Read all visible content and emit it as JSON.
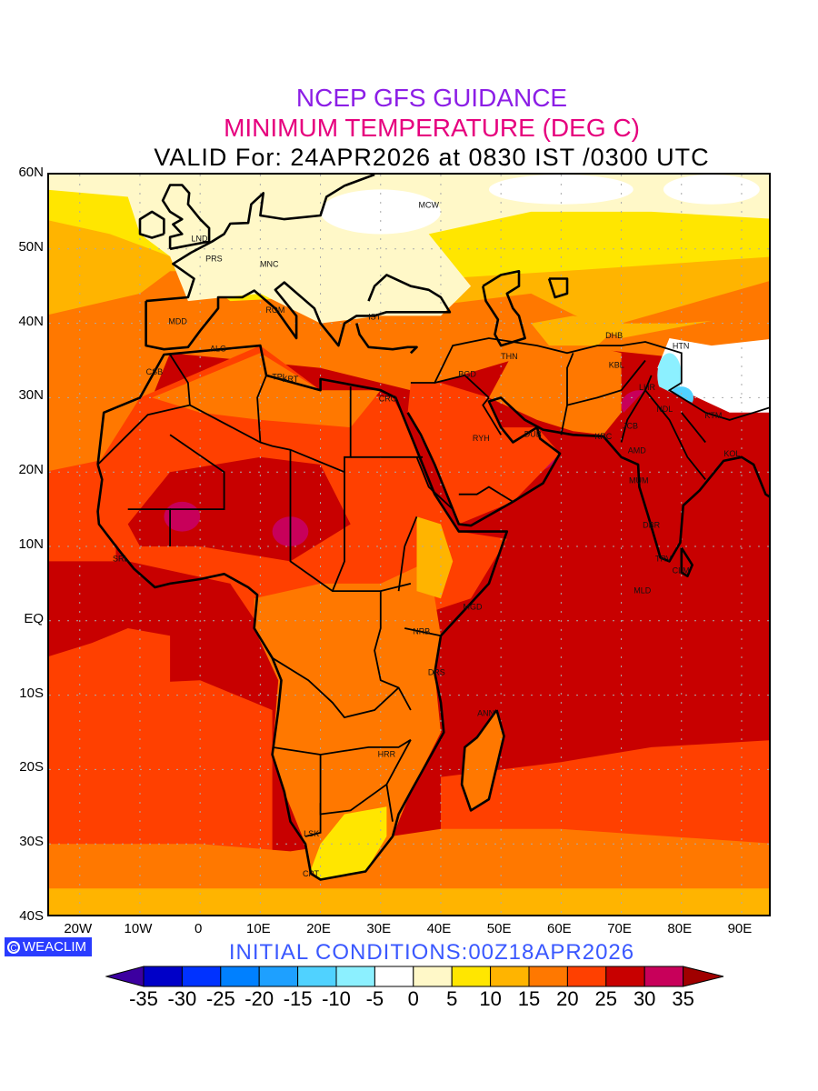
{
  "header": {
    "line1": "NCEP GFS GUIDANCE",
    "line2": "MINIMUM TEMPERATURE (DEG C)",
    "line3": "VALID For: 24APR2026 at 0830 IST /0300 UTC"
  },
  "axes": {
    "lat_labels": [
      "60N",
      "50N",
      "40N",
      "30N",
      "20N",
      "10N",
      "EQ",
      "10S",
      "20S",
      "30S",
      "40S"
    ],
    "lon_labels": [
      "20W",
      "10W",
      "0",
      "10E",
      "20E",
      "30E",
      "40E",
      "50E",
      "60E",
      "70E",
      "80E",
      "90E"
    ]
  },
  "cities": [
    "MCW",
    "LND",
    "PRS",
    "MNC",
    "ROM",
    "MDD",
    "IST",
    "ALG",
    "CSB",
    "TPL",
    "KRT",
    "CRO",
    "BGD",
    "THN",
    "DHB",
    "KBL",
    "HTN",
    "LHR",
    "JCB",
    "NDL",
    "KTM",
    "RYH",
    "DUB",
    "KRC",
    "AMD",
    "MUM",
    "KOL",
    "DBR",
    "TRV",
    "CLM",
    "MLD",
    "SRL",
    "MGD",
    "NRB",
    "DRS",
    "ANN",
    "HRR",
    "LSK",
    "CPT"
  ],
  "footer": {
    "badge": "WEACLIM",
    "initial": "INITIAL CONDITIONS:00Z18APR2026"
  },
  "colorbar": {
    "colors": [
      "#3c00a0",
      "#0000c8",
      "#0032ff",
      "#0080ff",
      "#1ea0ff",
      "#50d2ff",
      "#8cf0ff",
      "#ffffff",
      "#fff8c8",
      "#ffe600",
      "#ffb400",
      "#ff7800",
      "#ff4000",
      "#c80000",
      "#c8005a",
      "#a00000"
    ],
    "labels": [
      "-35",
      "-30",
      "-25",
      "-20",
      "-15",
      "-10",
      "-5",
      "0",
      "5",
      "10",
      "15",
      "20",
      "25",
      "30",
      "35"
    ]
  }
}
